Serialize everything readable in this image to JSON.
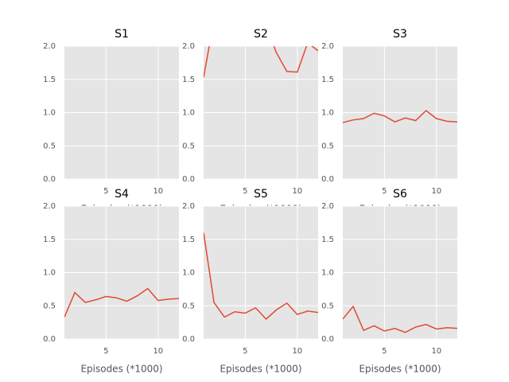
{
  "chart_data": [
    {
      "type": "line",
      "title": "S1",
      "xlabel": "Episodes (*1000)",
      "xlim": [
        1,
        12
      ],
      "ylim": [
        0,
        2
      ],
      "xticks": [
        5,
        10
      ],
      "yticks": [
        {
          "value": 0,
          "label": "0.0"
        },
        0.5,
        {
          "value": 1,
          "label": "1.0"
        },
        1.5,
        {
          "value": 2,
          "label": "2.0"
        }
      ],
      "grid": true
    },
    {
      "type": "line",
      "title": "S2",
      "xlabel": "Episodes (*1000)",
      "xlim": [
        1,
        12
      ],
      "ylim": [
        0,
        2
      ],
      "xticks": [
        5,
        10
      ],
      "yticks": [
        {
          "value": 0,
          "label": "0.0"
        },
        0.5,
        {
          "value": 1,
          "label": "1.0"
        },
        1.5,
        {
          "value": 2,
          "label": "2.0"
        }
      ],
      "grid": true,
      "x": [
        1,
        2,
        3,
        4,
        5,
        6,
        7,
        8,
        9,
        10,
        11,
        12
      ],
      "series": [
        {
          "color": "#E24A33",
          "values": [
            1.53,
            2.4,
            null,
            null,
            null,
            null,
            2.3,
            1.9,
            1.62,
            1.61,
            2.05,
            1.93
          ]
        }
      ]
    },
    {
      "type": "line",
      "title": "S3",
      "xlabel": "Episodes (*1000)",
      "xlim": [
        1,
        12
      ],
      "ylim": [
        0,
        2
      ],
      "xticks": [
        5,
        10
      ],
      "yticks": [
        {
          "value": 0,
          "label": "0.0"
        },
        0.5,
        {
          "value": 1,
          "label": "1.0"
        },
        1.5,
        {
          "value": 2,
          "label": "2.0"
        }
      ],
      "grid": true,
      "x": [
        1,
        2,
        3,
        4,
        5,
        6,
        7,
        8,
        9,
        10,
        11,
        12
      ],
      "series": [
        {
          "color": "#E24A33",
          "values": [
            0.85,
            0.89,
            0.91,
            0.99,
            0.95,
            0.86,
            0.92,
            0.88,
            1.03,
            0.91,
            0.87,
            0.86
          ]
        }
      ]
    },
    {
      "type": "line",
      "title": "S4",
      "xlabel": "Episodes (*1000)",
      "xlim": [
        1,
        12
      ],
      "ylim": [
        0,
        2
      ],
      "xticks": [
        5,
        10
      ],
      "yticks": [
        {
          "value": 0,
          "label": "0.0"
        },
        0.5,
        {
          "value": 1,
          "label": "1.0"
        },
        1.5,
        {
          "value": 2,
          "label": "2.0"
        }
      ],
      "grid": true,
      "x": [
        1,
        2,
        3,
        4,
        5,
        6,
        7,
        8,
        9,
        10,
        11,
        12
      ],
      "series": [
        {
          "color": "#E24A33",
          "values": [
            0.33,
            0.7,
            0.55,
            0.59,
            0.64,
            0.62,
            0.57,
            0.65,
            0.76,
            0.58,
            0.6,
            0.61
          ]
        }
      ]
    },
    {
      "type": "line",
      "title": "S5",
      "xlabel": "Episodes (*1000)",
      "xlim": [
        1,
        12
      ],
      "ylim": [
        0,
        2
      ],
      "xticks": [
        5,
        10
      ],
      "yticks": [
        {
          "value": 0,
          "label": "0.0"
        },
        0.5,
        {
          "value": 1,
          "label": "1.0"
        },
        1.5,
        {
          "value": 2,
          "label": "2.0"
        }
      ],
      "grid": true,
      "x": [
        1,
        2,
        3,
        4,
        5,
        6,
        7,
        8,
        9,
        10,
        11,
        12
      ],
      "series": [
        {
          "color": "#E24A33",
          "values": [
            1.6,
            0.55,
            0.33,
            0.41,
            0.39,
            0.47,
            0.3,
            0.44,
            0.54,
            0.37,
            0.42,
            0.4
          ]
        }
      ]
    },
    {
      "type": "line",
      "title": "S6",
      "xlabel": "Episodes (*1000)",
      "xlim": [
        1,
        12
      ],
      "ylim": [
        0,
        2
      ],
      "xticks": [
        5,
        10
      ],
      "yticks": [
        {
          "value": 0,
          "label": "0.0"
        },
        0.5,
        {
          "value": 1,
          "label": "1.0"
        },
        1.5,
        {
          "value": 2,
          "label": "2.0"
        }
      ],
      "grid": true,
      "x": [
        1,
        2,
        3,
        4,
        5,
        6,
        7,
        8,
        9,
        10,
        11,
        12
      ],
      "series": [
        {
          "color": "#E24A33",
          "values": [
            0.3,
            0.49,
            0.13,
            0.2,
            0.12,
            0.16,
            0.1,
            0.18,
            0.22,
            0.15,
            0.17,
            0.16
          ]
        }
      ]
    }
  ]
}
